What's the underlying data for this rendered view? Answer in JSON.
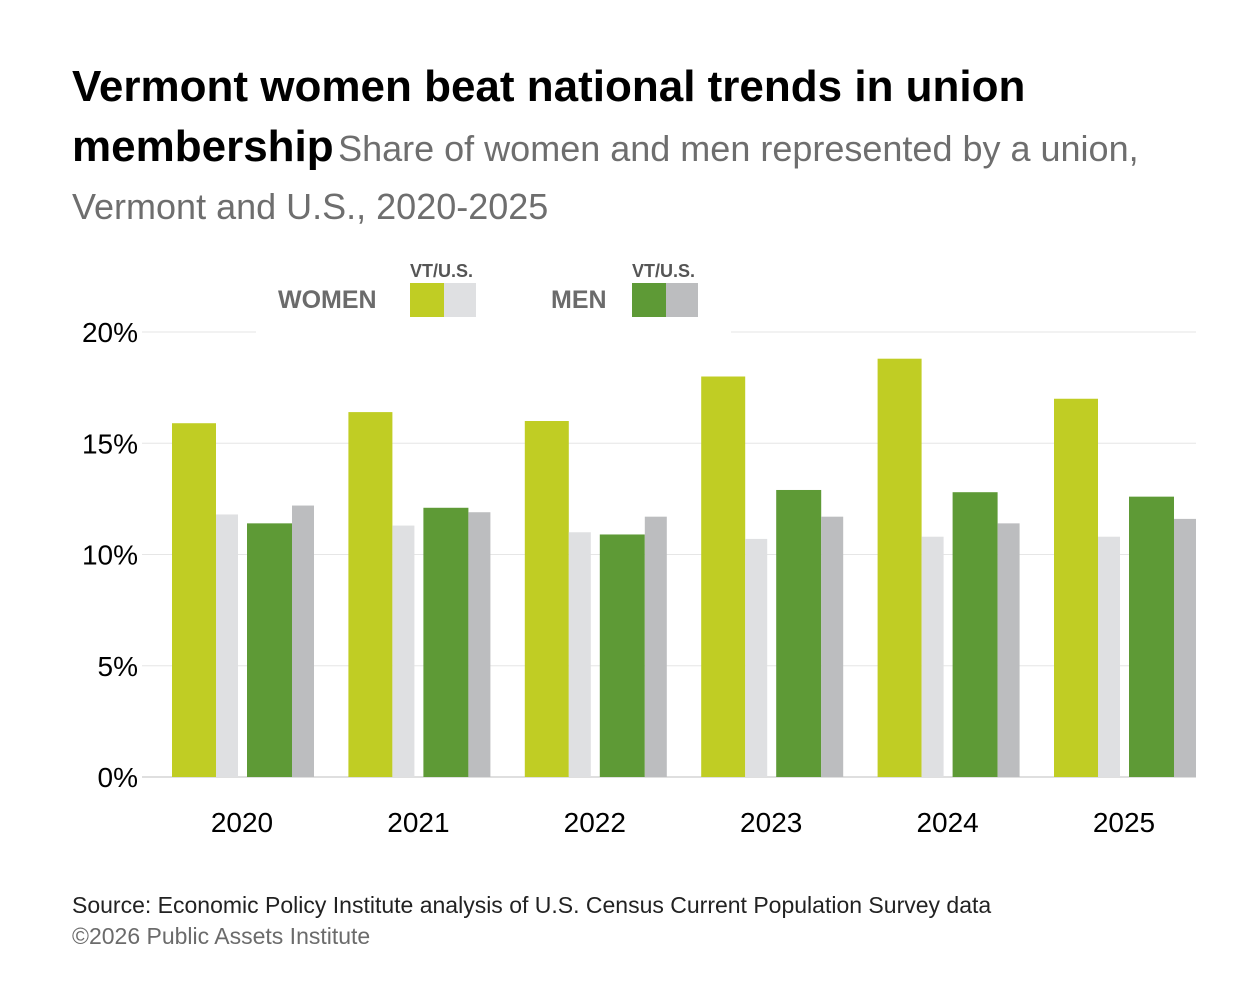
{
  "title": "Vermont women beat national trends in union membership",
  "subtitle": "Share of women and men represented by a union, Vermont and U.S., 2020-2025",
  "legend": {
    "women_label": "WOMEN",
    "men_label": "MEN",
    "pair_label": "VT/U.S."
  },
  "colors": {
    "vt_women": "#c0cd24",
    "us_women": "#dfe0e2",
    "vt_men": "#5e9a36",
    "us_men": "#bcbdbf",
    "grid": "#e6e6e6"
  },
  "chart_data": {
    "type": "bar",
    "title": "Vermont women beat national trends in union membership",
    "subtitle": "Share of women and men represented by a union, Vermont and U.S., 2020-2025",
    "categories": [
      "2020",
      "2021",
      "2022",
      "2023",
      "2024",
      "2025"
    ],
    "series": [
      {
        "group": "WOMEN",
        "region": "VT",
        "values": [
          15.9,
          16.4,
          16.0,
          18.0,
          18.8,
          17.0
        ]
      },
      {
        "group": "WOMEN",
        "region": "U.S.",
        "values": [
          11.8,
          11.3,
          11.0,
          10.7,
          10.8,
          10.8
        ]
      },
      {
        "group": "MEN",
        "region": "VT",
        "values": [
          11.4,
          12.1,
          10.9,
          12.9,
          12.8,
          12.6
        ]
      },
      {
        "group": "MEN",
        "region": "U.S.",
        "values": [
          12.2,
          11.9,
          11.7,
          11.7,
          11.4,
          11.6
        ]
      }
    ],
    "ylim": [
      0,
      20
    ],
    "yticks": [
      0,
      5,
      10,
      15,
      20
    ],
    "ytick_labels": [
      "0%",
      "5%",
      "10%",
      "15%",
      "20%"
    ],
    "xlabel": "",
    "ylabel": "",
    "grid": true,
    "legend_position": "top-left"
  },
  "footer": {
    "source": "Source: Economic Policy Institute analysis of U.S. Census Current Population Survey data",
    "copyright": "©2026 Public Assets Institute"
  }
}
